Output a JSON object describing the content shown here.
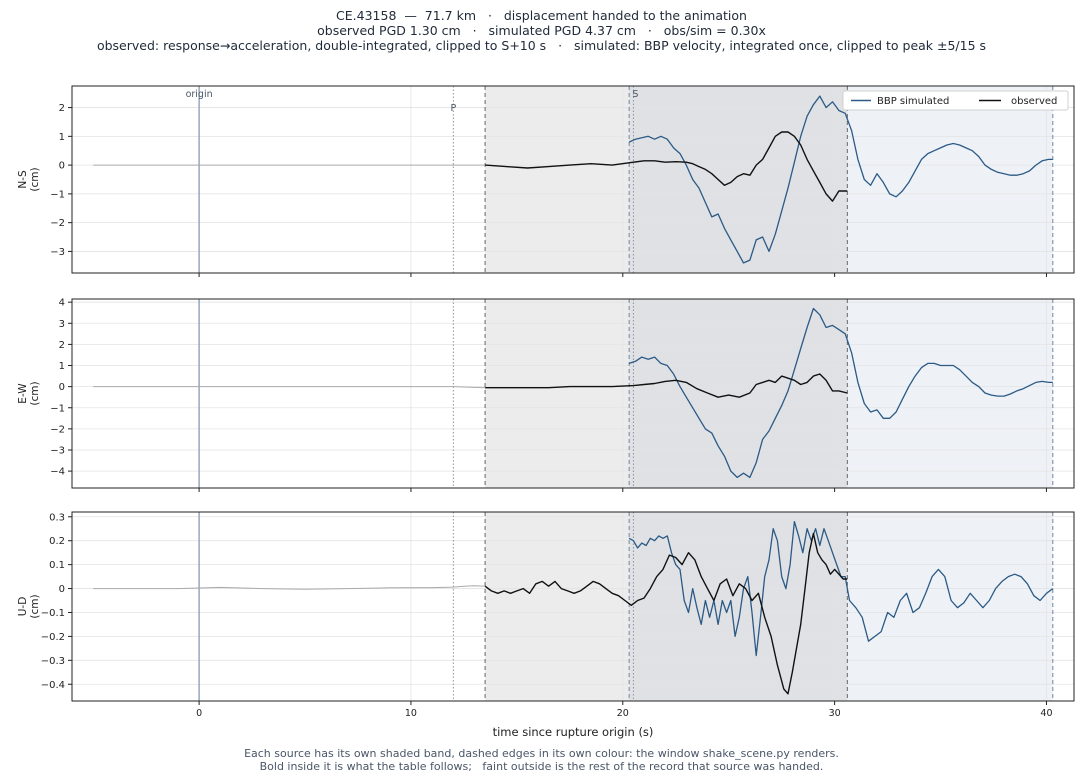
{
  "header": {
    "line1": "CE.43158  —  71.7 km   ·   displacement handed to the animation",
    "line2": "observed PGD 1.30 cm   ·   simulated PGD 4.37 cm   ·   obs/sim = 0.30x",
    "line3": "observed: response→acceleration, double-integrated, clipped to S+10 s   ·   simulated: BBP velocity, integrated once, clipped to peak ±5/15 s"
  },
  "footer": {
    "line1": "Each source has its own shaded band, dashed edges in its own colour: the window shake_scene.py renders.",
    "line2": "Bold inside it is what the table follows;   faint outside is the rest of the record that source was handed."
  },
  "colors": {
    "simulated": "#2b5a86",
    "observed": "#111111",
    "observed_faint": "#aaaaaa",
    "obs_band": "#ececec",
    "sim_band": "#eef2f6",
    "overlap_band": "#dfe1e5",
    "origin_line": "#8ea2bb",
    "marker_text": "#4a5668"
  },
  "chart_data": {
    "type": "line",
    "xlabel": "time since rupture origin (s)",
    "xlim": [
      -6,
      41.3
    ],
    "xticks": [
      0,
      10,
      20,
      30,
      40
    ],
    "markers": {
      "origin": 0,
      "P": 12,
      "S": 20.5
    },
    "marker_labels": {
      "origin": "origin",
      "P": "P",
      "S": "S"
    },
    "observed_window": [
      13.5,
      30.6
    ],
    "simulated_window": [
      20.3,
      40.3
    ],
    "legend": {
      "position": "top-right",
      "entries": [
        "BBP simulated",
        "observed"
      ]
    },
    "panels": [
      {
        "ylabel_line1": "N-S",
        "ylabel_line2": "(cm)",
        "ylim": [
          -3.75,
          2.75
        ],
        "yticks": [
          -3,
          -2,
          -1,
          0,
          1,
          2
        ],
        "series": [
          {
            "name": "BBP simulated",
            "x": [
              20.3,
              20.6,
              20.9,
              21.2,
              21.5,
              21.8,
              22.1,
              22.4,
              22.7,
              23.0,
              23.3,
              23.6,
              23.9,
              24.2,
              24.5,
              24.8,
              25.1,
              25.4,
              25.7,
              26.0,
              26.3,
              26.6,
              26.9,
              27.2,
              27.5,
              27.8,
              28.1,
              28.4,
              28.7,
              29.0,
              29.3,
              29.6,
              29.9,
              30.2,
              30.5,
              30.8,
              31.1,
              31.4,
              31.7,
              32.0,
              32.3,
              32.6,
              32.9,
              33.2,
              33.5,
              33.8,
              34.1,
              34.4,
              34.7,
              35.0,
              35.3,
              35.6,
              35.9,
              36.2,
              36.5,
              36.8,
              37.1,
              37.4,
              37.7,
              38.0,
              38.3,
              38.6,
              38.9,
              39.2,
              39.5,
              39.8,
              40.1,
              40.3
            ],
            "y": [
              0.8,
              0.9,
              0.95,
              1.0,
              0.9,
              1.0,
              0.9,
              0.6,
              0.4,
              0.0,
              -0.5,
              -0.8,
              -1.3,
              -1.8,
              -1.7,
              -2.2,
              -2.6,
              -3.0,
              -3.4,
              -3.3,
              -2.6,
              -2.5,
              -3.0,
              -2.4,
              -1.6,
              -0.8,
              0.1,
              1.0,
              1.7,
              2.1,
              2.4,
              2.0,
              2.2,
              1.9,
              1.8,
              1.2,
              0.2,
              -0.5,
              -0.7,
              -0.3,
              -0.6,
              -1.0,
              -1.1,
              -0.9,
              -0.6,
              -0.2,
              0.2,
              0.4,
              0.5,
              0.6,
              0.7,
              0.75,
              0.7,
              0.6,
              0.5,
              0.3,
              0.0,
              -0.15,
              -0.25,
              -0.3,
              -0.35,
              -0.35,
              -0.3,
              -0.2,
              0.0,
              0.15,
              0.2,
              0.2
            ]
          },
          {
            "name": "observed",
            "x": [
              13.5,
              14.5,
              15.5,
              16.5,
              17.5,
              18.5,
              19.5,
              20.5,
              21.0,
              21.5,
              22.0,
              22.5,
              23.0,
              23.3,
              23.6,
              23.9,
              24.2,
              24.5,
              24.8,
              25.1,
              25.4,
              25.7,
              26.0,
              26.3,
              26.6,
              26.9,
              27.2,
              27.5,
              27.8,
              28.1,
              28.4,
              28.7,
              29.0,
              29.3,
              29.6,
              29.9,
              30.2,
              30.6
            ],
            "y": [
              0.0,
              -0.05,
              -0.1,
              -0.05,
              0.0,
              0.05,
              0.0,
              0.1,
              0.15,
              0.15,
              0.1,
              0.12,
              0.1,
              0.05,
              -0.05,
              -0.15,
              -0.3,
              -0.5,
              -0.7,
              -0.6,
              -0.4,
              -0.3,
              -0.35,
              0.0,
              0.2,
              0.6,
              1.0,
              1.15,
              1.15,
              1.0,
              0.7,
              0.2,
              -0.2,
              -0.6,
              -1.0,
              -1.25,
              -0.9,
              -0.9
            ]
          },
          {
            "name": "observed (outside window)",
            "x": [
              -5,
              -2,
              1,
              4,
              7,
              10,
              12,
              13.5
            ],
            "y": [
              0.0,
              0.0,
              0.0,
              0.0,
              0.0,
              0.0,
              0.0,
              0.0
            ]
          }
        ]
      },
      {
        "ylabel_line1": "E-W",
        "ylabel_line2": "(cm)",
        "ylim": [
          -4.8,
          4.15
        ],
        "yticks": [
          -4,
          -3,
          -2,
          -1,
          0,
          1,
          2,
          3,
          4
        ],
        "series": [
          {
            "name": "BBP simulated",
            "x": [
              20.3,
              20.6,
              20.9,
              21.2,
              21.5,
              21.8,
              22.1,
              22.4,
              22.7,
              23.0,
              23.3,
              23.6,
              23.9,
              24.2,
              24.5,
              24.8,
              25.1,
              25.4,
              25.7,
              26.0,
              26.3,
              26.6,
              26.9,
              27.2,
              27.5,
              27.8,
              28.1,
              28.4,
              28.7,
              29.0,
              29.3,
              29.6,
              29.9,
              30.2,
              30.5,
              30.8,
              31.1,
              31.4,
              31.7,
              32.0,
              32.3,
              32.6,
              32.9,
              33.2,
              33.5,
              33.8,
              34.1,
              34.4,
              34.7,
              35.0,
              35.3,
              35.6,
              35.9,
              36.2,
              36.5,
              36.8,
              37.1,
              37.4,
              37.7,
              38.0,
              38.3,
              38.6,
              38.9,
              39.2,
              39.5,
              39.8,
              40.1,
              40.3
            ],
            "y": [
              1.1,
              1.2,
              1.4,
              1.3,
              1.4,
              1.1,
              1.0,
              0.6,
              0.0,
              -0.5,
              -1.0,
              -1.5,
              -2.0,
              -2.2,
              -2.8,
              -3.3,
              -4.0,
              -4.3,
              -4.1,
              -4.3,
              -3.6,
              -2.5,
              -2.1,
              -1.5,
              -0.9,
              -0.2,
              0.8,
              1.8,
              2.8,
              3.7,
              3.4,
              2.8,
              2.9,
              2.7,
              2.5,
              1.6,
              0.2,
              -0.8,
              -1.2,
              -1.1,
              -1.5,
              -1.5,
              -1.2,
              -0.6,
              0.0,
              0.5,
              0.9,
              1.1,
              1.1,
              1.0,
              1.0,
              1.0,
              0.8,
              0.5,
              0.2,
              0.0,
              -0.3,
              -0.4,
              -0.45,
              -0.45,
              -0.35,
              -0.2,
              -0.1,
              0.05,
              0.2,
              0.25,
              0.2,
              0.2
            ]
          },
          {
            "name": "observed",
            "x": [
              13.5,
              14.5,
              15.5,
              16.5,
              17.5,
              18.5,
              19.5,
              20.5,
              21.0,
              21.5,
              22.0,
              22.5,
              23.0,
              23.5,
              24.0,
              24.5,
              25.0,
              25.5,
              26.0,
              26.3,
              26.6,
              26.9,
              27.2,
              27.5,
              27.8,
              28.1,
              28.4,
              28.7,
              29.0,
              29.3,
              29.6,
              29.9,
              30.2,
              30.6
            ],
            "y": [
              -0.05,
              -0.05,
              -0.05,
              -0.05,
              0.0,
              0.0,
              0.0,
              0.05,
              0.1,
              0.15,
              0.25,
              0.3,
              0.2,
              -0.1,
              -0.3,
              -0.5,
              -0.4,
              -0.5,
              -0.3,
              0.1,
              0.2,
              0.3,
              0.2,
              0.5,
              0.4,
              0.3,
              0.1,
              0.2,
              0.5,
              0.6,
              0.3,
              -0.2,
              -0.2,
              -0.3
            ]
          },
          {
            "name": "observed (outside window)",
            "x": [
              -5,
              -2,
              1,
              4,
              7,
              10,
              12,
              13.5
            ],
            "y": [
              0.0,
              0.0,
              0.0,
              0.0,
              0.0,
              0.0,
              0.0,
              -0.05
            ]
          }
        ]
      },
      {
        "ylabel_line1": "U-D",
        "ylabel_line2": "(cm)",
        "ylim": [
          -0.47,
          0.32
        ],
        "yticks": [
          -0.4,
          -0.3,
          -0.2,
          -0.1,
          0.0,
          0.1,
          0.2,
          0.3
        ],
        "series": [
          {
            "name": "BBP simulated",
            "x": [
              20.3,
              20.5,
              20.7,
              20.9,
              21.1,
              21.3,
              21.5,
              21.7,
              21.9,
              22.1,
              22.3,
              22.5,
              22.7,
              22.9,
              23.1,
              23.3,
              23.5,
              23.7,
              23.9,
              24.1,
              24.3,
              24.5,
              24.7,
              24.9,
              25.1,
              25.3,
              25.5,
              25.7,
              25.9,
              26.1,
              26.3,
              26.5,
              26.7,
              26.9,
              27.1,
              27.3,
              27.5,
              27.7,
              27.9,
              28.1,
              28.3,
              28.5,
              28.7,
              28.9,
              29.1,
              29.3,
              29.5,
              29.7,
              29.9,
              30.1,
              30.3,
              30.5,
              30.7,
              31.0,
              31.3,
              31.6,
              31.9,
              32.2,
              32.5,
              32.8,
              33.1,
              33.4,
              33.7,
              34.0,
              34.3,
              34.6,
              34.9,
              35.2,
              35.5,
              35.8,
              36.1,
              36.4,
              36.7,
              37.0,
              37.3,
              37.6,
              37.9,
              38.2,
              38.5,
              38.8,
              39.1,
              39.4,
              39.7,
              40.0,
              40.3
            ],
            "y": [
              0.21,
              0.2,
              0.17,
              0.19,
              0.18,
              0.21,
              0.2,
              0.22,
              0.21,
              0.22,
              0.15,
              0.1,
              0.08,
              -0.05,
              -0.1,
              0.0,
              -0.08,
              -0.15,
              -0.05,
              -0.12,
              -0.05,
              -0.15,
              -0.05,
              -0.1,
              -0.05,
              -0.2,
              -0.12,
              0.0,
              0.05,
              -0.1,
              -0.28,
              -0.12,
              0.05,
              0.12,
              0.25,
              0.2,
              0.05,
              0.0,
              0.1,
              0.28,
              0.22,
              0.15,
              0.25,
              0.2,
              0.25,
              0.18,
              0.25,
              0.2,
              0.15,
              0.1,
              0.05,
              0.05,
              -0.05,
              -0.08,
              -0.12,
              -0.22,
              -0.2,
              -0.18,
              -0.1,
              -0.12,
              -0.05,
              -0.02,
              -0.1,
              -0.08,
              -0.02,
              0.05,
              0.08,
              0.05,
              -0.05,
              -0.08,
              -0.06,
              -0.02,
              -0.05,
              -0.08,
              -0.05,
              0.0,
              0.03,
              0.05,
              0.06,
              0.05,
              0.02,
              -0.03,
              -0.05,
              -0.02,
              0.0
            ]
          },
          {
            "name": "observed",
            "x": [
              13.5,
              13.8,
              14.1,
              14.4,
              14.7,
              15.0,
              15.3,
              15.6,
              15.9,
              16.2,
              16.5,
              16.8,
              17.1,
              17.4,
              17.7,
              18.0,
              18.3,
              18.6,
              18.9,
              19.2,
              19.5,
              19.8,
              20.1,
              20.4,
              20.7,
              21.0,
              21.3,
              21.6,
              21.9,
              22.2,
              22.5,
              22.8,
              23.1,
              23.4,
              23.7,
              24.0,
              24.3,
              24.6,
              24.9,
              25.2,
              25.5,
              25.8,
              26.1,
              26.4,
              26.7,
              27.0,
              27.3,
              27.6,
              27.8,
              28.0,
              28.2,
              28.4,
              28.6,
              28.8,
              29.0,
              29.2,
              29.4,
              29.6,
              29.8,
              30.0,
              30.2,
              30.4,
              30.6
            ],
            "y": [
              0.01,
              -0.01,
              -0.02,
              -0.01,
              -0.02,
              -0.01,
              0.0,
              -0.02,
              0.02,
              0.03,
              0.01,
              0.03,
              0.0,
              -0.01,
              -0.02,
              -0.01,
              0.01,
              0.03,
              0.02,
              0.0,
              -0.02,
              -0.03,
              -0.05,
              -0.07,
              -0.05,
              -0.04,
              0.0,
              0.05,
              0.08,
              0.14,
              0.13,
              0.1,
              0.15,
              0.12,
              0.05,
              0.0,
              -0.05,
              0.02,
              0.04,
              -0.03,
              0.02,
              0.0,
              -0.05,
              -0.02,
              -0.12,
              -0.2,
              -0.32,
              -0.42,
              -0.44,
              -0.35,
              -0.25,
              -0.15,
              0.0,
              0.15,
              0.23,
              0.15,
              0.12,
              0.1,
              0.06,
              0.08,
              0.06,
              0.04,
              0.04
            ]
          },
          {
            "name": "observed (outside window)",
            "x": [
              -5,
              -3,
              -1,
              1,
              3,
              5,
              7,
              9,
              11,
              12,
              12.5,
              13.0,
              13.5
            ],
            "y": [
              0.0,
              0.0,
              0.0,
              0.005,
              0.0,
              -0.003,
              0.0,
              0.003,
              0.004,
              0.006,
              0.01,
              0.012,
              0.01
            ]
          }
        ]
      }
    ]
  }
}
